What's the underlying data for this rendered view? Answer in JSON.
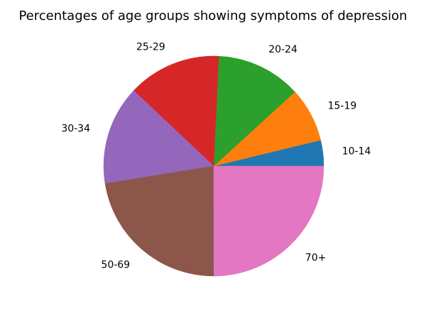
{
  "chart_data": {
    "type": "pie",
    "title": "Percentages of age groups showing symptoms of depression",
    "start_angle_deg": 0,
    "direction": "counterclockwise",
    "slices": [
      {
        "label": "10-14",
        "value": 3.8,
        "color": "#1f77b4"
      },
      {
        "label": "15-19",
        "value": 8.0,
        "color": "#ff7f0e"
      },
      {
        "label": "20-24",
        "value": 12.5,
        "color": "#2ca02c"
      },
      {
        "label": "25-29",
        "value": 13.7,
        "color": "#d62728"
      },
      {
        "label": "30-34",
        "value": 14.6,
        "color": "#9467bd"
      },
      {
        "label": "50-69",
        "value": 22.5,
        "color": "#8c564b"
      },
      {
        "label": "70+",
        "value": 25.0,
        "color": "#e377c2"
      }
    ]
  }
}
